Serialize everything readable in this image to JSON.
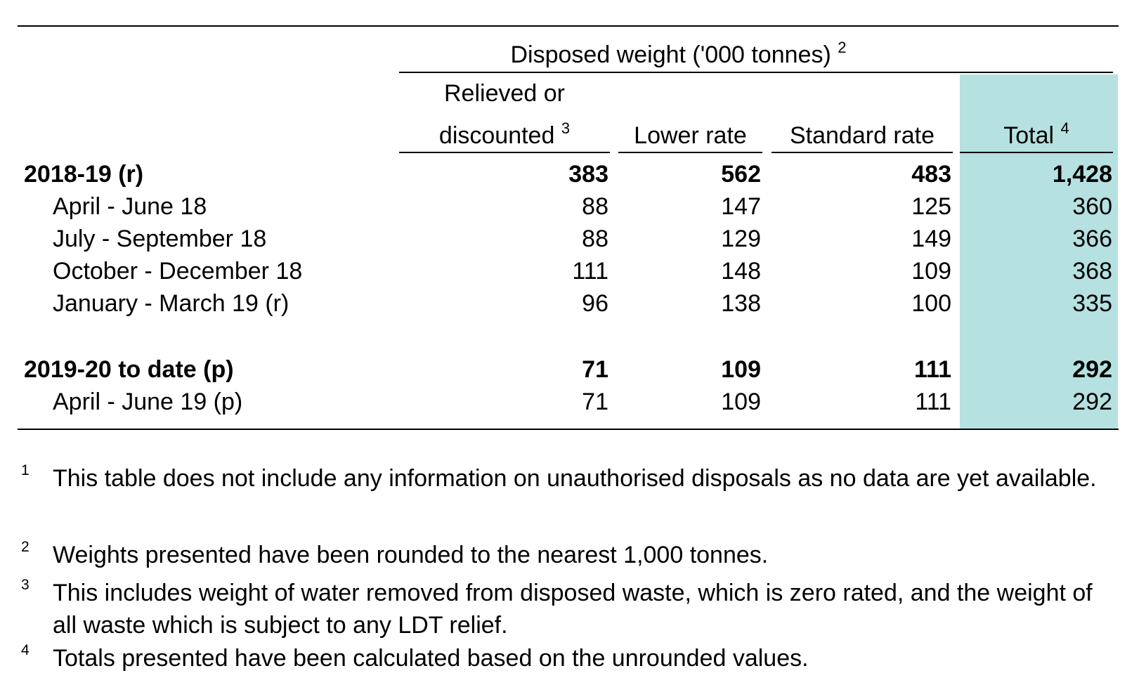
{
  "header": {
    "group_label": "Disposed weight ('000 tonnes)",
    "group_sup": "2",
    "columns": [
      {
        "line1": "Relieved or",
        "line2": "discounted",
        "sup": "3"
      },
      {
        "line1": "",
        "line2": "Lower rate",
        "sup": ""
      },
      {
        "line1": "",
        "line2": "Standard rate",
        "sup": ""
      },
      {
        "line1": "",
        "line2": "Total",
        "sup": "4"
      }
    ]
  },
  "rows": [
    {
      "label": "2018-19 (r)",
      "bold": true,
      "values": [
        "383",
        "562",
        "483",
        "1,428"
      ]
    },
    {
      "label": "April - June 18",
      "bold": false,
      "values": [
        "88",
        "147",
        "125",
        "360"
      ]
    },
    {
      "label": "July - September 18",
      "bold": false,
      "values": [
        "88",
        "129",
        "149",
        "366"
      ]
    },
    {
      "label": "October - December 18",
      "bold": false,
      "values": [
        "111",
        "148",
        "109",
        "368"
      ]
    },
    {
      "label": "January - March 19 (r)",
      "bold": false,
      "values": [
        "96",
        "138",
        "100",
        "335"
      ]
    },
    {
      "label": "2019-20 to date (p)",
      "bold": true,
      "values": [
        "71",
        "109",
        "111",
        "292"
      ]
    },
    {
      "label": "April - June 19 (p)",
      "bold": false,
      "values": [
        "71",
        "109",
        "111",
        "292"
      ]
    }
  ],
  "footnotes": [
    {
      "num": "1",
      "text": "This table does not include any information on unauthorised disposals as no data are yet available."
    },
    {
      "num": "2",
      "text": "Weights presented have been rounded to the nearest 1,000 tonnes."
    },
    {
      "num": "3",
      "text": "This includes weight of water removed from disposed waste, which is zero rated, and the weight of all waste which is subject to any LDT relief."
    },
    {
      "num": "4",
      "text": "Totals presented have been calculated based on the unrounded values."
    }
  ],
  "colors": {
    "total_band": "#b5e1e0",
    "rule": "#000000"
  }
}
